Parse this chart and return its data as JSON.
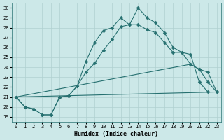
{
  "xlabel": "Humidex (Indice chaleur)",
  "bg_color": "#cce8e8",
  "grid_color": "#b0d0d0",
  "line_color": "#267070",
  "xlim": [
    -0.5,
    23.5
  ],
  "ylim": [
    18.5,
    30.5
  ],
  "yticks": [
    19,
    20,
    21,
    22,
    23,
    24,
    25,
    26,
    27,
    28,
    29,
    30
  ],
  "xticks": [
    0,
    1,
    2,
    3,
    4,
    5,
    6,
    7,
    8,
    9,
    10,
    11,
    12,
    13,
    14,
    15,
    16,
    17,
    18,
    19,
    20,
    21,
    22,
    23
  ],
  "line_peak": {
    "x": [
      0,
      1,
      2,
      3,
      4,
      5,
      6,
      7,
      8,
      9,
      10,
      11,
      12,
      13,
      14,
      15,
      16,
      17,
      18,
      19,
      20,
      21,
      22
    ],
    "y": [
      21.0,
      20.0,
      19.8,
      19.2,
      19.2,
      21.0,
      21.1,
      22.1,
      24.6,
      26.5,
      27.7,
      28.0,
      29.0,
      28.3,
      30.0,
      29.0,
      28.5,
      27.5,
      26.0,
      25.5,
      25.3,
      22.5,
      21.5
    ]
  },
  "line_mid": {
    "x": [
      0,
      1,
      2,
      3,
      4,
      5,
      6,
      7,
      8,
      9,
      10,
      11,
      12,
      13,
      14,
      15,
      16,
      17,
      18,
      19,
      20,
      21,
      22,
      23
    ],
    "y": [
      21.0,
      20.0,
      19.8,
      19.2,
      19.2,
      21.0,
      21.1,
      22.1,
      23.5,
      24.4,
      25.7,
      26.8,
      28.1,
      28.3,
      28.3,
      27.8,
      27.5,
      26.5,
      25.5,
      25.5,
      24.3,
      23.8,
      23.5,
      21.5
    ]
  },
  "line_diag_upper": {
    "x": [
      0,
      20,
      21,
      22,
      23
    ],
    "y": [
      21.0,
      24.3,
      23.8,
      22.5,
      21.5
    ]
  },
  "line_diag_lower": {
    "x": [
      0,
      23
    ],
    "y": [
      21.0,
      21.5
    ]
  }
}
